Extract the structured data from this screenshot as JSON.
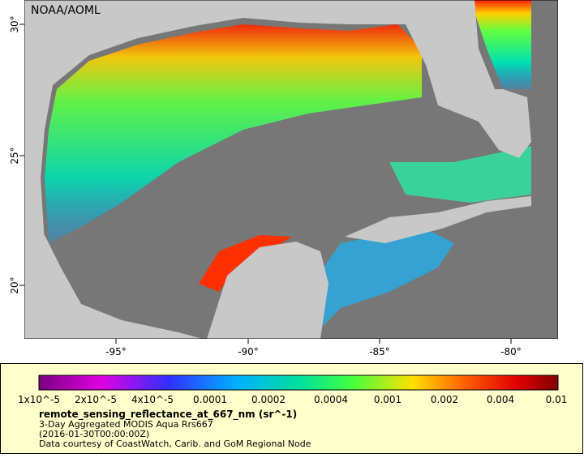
{
  "map": {
    "title": "NOAA/AOML",
    "x_labels": [
      "-95°",
      "-90°",
      "-85°",
      "-80°"
    ],
    "y_labels": [
      "30°",
      "25°",
      "20°"
    ],
    "colorbar_labels": [
      "1x10^-5",
      "2x10^-5",
      "4x10^-5",
      "0.0001",
      "0.0002",
      "0.0004",
      "0.001",
      "0.002",
      "0.004",
      "0.01"
    ],
    "legend": {
      "variable": "remote_sensing_reflectance_at_667_nm (sr^-1)",
      "dataset": "3-Day Aggregated MODIS Aqua Rrs667",
      "time": "(2016-01-30T00:00:00Z)",
      "credit": "Data courtesy of CoastWatch, Carib. and GoM Regional Node"
    }
  }
}
